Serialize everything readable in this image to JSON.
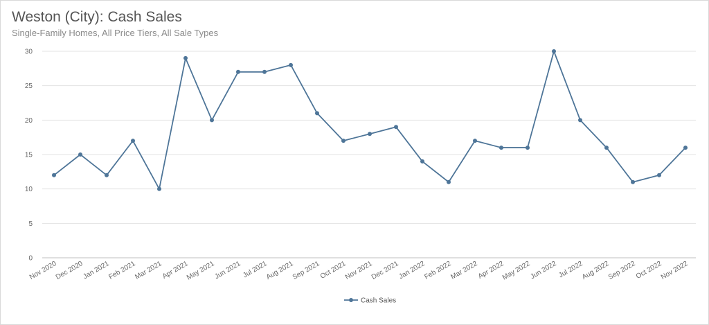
{
  "chart_data": {
    "type": "line",
    "title": "Weston (City): Cash Sales",
    "subtitle": "Single-Family Homes, All Price Tiers, All Sale Types",
    "xlabel": "",
    "ylabel": "",
    "ylim": [
      0,
      30
    ],
    "yticks": [
      0,
      5,
      10,
      15,
      20,
      25,
      30
    ],
    "grid": true,
    "legend_position": "bottom-center",
    "categories": [
      "Nov 2020",
      "Dec 2020",
      "Jan 2021",
      "Feb 2021",
      "Mar 2021",
      "Apr 2021",
      "May 2021",
      "Jun 2021",
      "Jul 2021",
      "Aug 2021",
      "Sep 2021",
      "Oct 2021",
      "Nov 2021",
      "Dec 2021",
      "Jan 2022",
      "Feb 2022",
      "Mar 2022",
      "Apr 2022",
      "May 2022",
      "Jun 2022",
      "Jul 2022",
      "Aug 2022",
      "Sep 2022",
      "Oct 2022",
      "Nov 2022"
    ],
    "series": [
      {
        "name": "Cash Sales",
        "color": "#4e7598",
        "values": [
          12,
          15,
          12,
          17,
          10,
          29,
          20,
          27,
          27,
          28,
          21,
          17,
          18,
          19,
          14,
          11,
          17,
          16,
          16,
          30,
          20,
          16,
          11,
          12,
          16
        ]
      }
    ]
  }
}
